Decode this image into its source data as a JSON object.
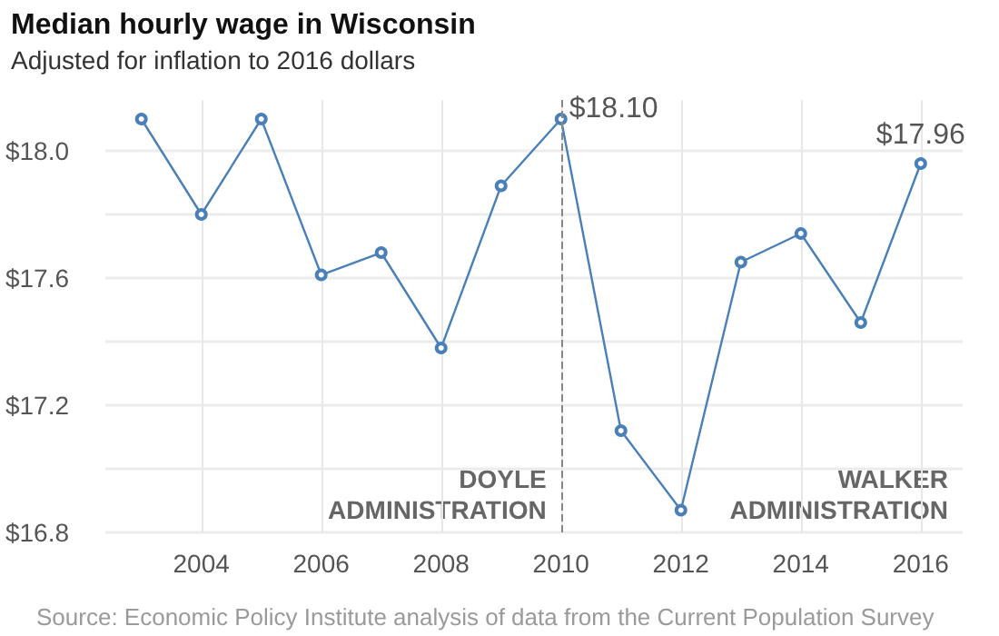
{
  "chart_data": {
    "type": "line",
    "title": "Median hourly wage in Wisconsin",
    "subtitle": "Adjusted for inflation to 2016 dollars",
    "x": [
      2003,
      2004,
      2005,
      2006,
      2007,
      2008,
      2009,
      2010,
      2011,
      2012,
      2013,
      2014,
      2015,
      2016
    ],
    "series": [
      {
        "color": "#4a80b8",
        "values": [
          18.1,
          17.8,
          18.1,
          17.61,
          17.68,
          17.38,
          17.89,
          18.1,
          17.12,
          16.87,
          17.65,
          17.74,
          17.46,
          17.96
        ],
        "value_labels": [
          null,
          null,
          null,
          null,
          null,
          null,
          null,
          "$18.10",
          null,
          null,
          null,
          null,
          null,
          "$17.96"
        ]
      }
    ],
    "xlim": [
      2002.4,
      2016.7
    ],
    "xticks": [
      2004,
      2006,
      2008,
      2010,
      2012,
      2014,
      2016
    ],
    "ylim": [
      16.8,
      18.16
    ],
    "yticks": [
      {
        "value": 16.8,
        "label": "$16.8"
      },
      {
        "value": 17.0,
        "label": null
      },
      {
        "value": 17.2,
        "label": "$17.2"
      },
      {
        "value": 17.4,
        "label": null
      },
      {
        "value": 17.6,
        "label": "$17.6"
      },
      {
        "value": 17.8,
        "label": null
      },
      {
        "value": 18.0,
        "label": "$18.0"
      }
    ],
    "grid": true,
    "marker": "circle",
    "line_style": "solid",
    "ref_lines": [
      {
        "axis": "x",
        "value": 2010,
        "color": "#888888",
        "line_style": "dashed"
      }
    ],
    "annotations": [
      "DOYLE\nADMINISTRATION",
      "WALKER\nADMINISTRATION",
      "Source: Economic Policy Institute analysis of data from the Current Population Survey"
    ]
  }
}
